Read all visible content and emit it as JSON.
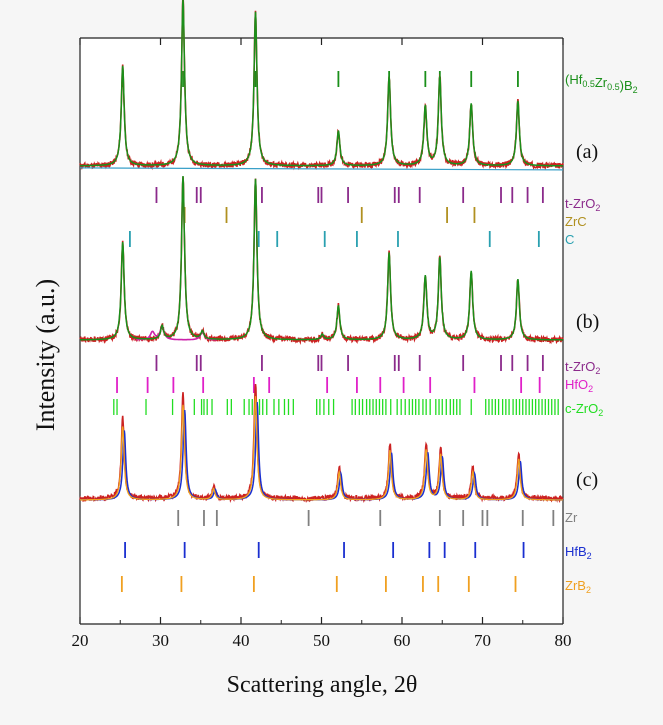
{
  "chart_data": {
    "type": "line",
    "xlabel": "Scattering angle, 2θ",
    "ylabel": "Intensity (a.u.)",
    "xlim": [
      20,
      80
    ],
    "xticks": [
      20,
      30,
      40,
      50,
      60,
      70,
      80
    ],
    "series": [
      {
        "label": "(a)",
        "baseline_rel": 0.03,
        "colors": {
          "observed": "#cc2222",
          "calculated": "#1a8f1a",
          "background": "#3aa0c8"
        },
        "peaks": [
          {
            "x": 25.3,
            "h": 0.37
          },
          {
            "x": 32.8,
            "h": 0.62
          },
          {
            "x": 41.8,
            "h": 0.57
          },
          {
            "x": 52.1,
            "h": 0.13
          },
          {
            "x": 58.4,
            "h": 0.33
          },
          {
            "x": 62.9,
            "h": 0.22
          },
          {
            "x": 64.7,
            "h": 0.33
          },
          {
            "x": 68.6,
            "h": 0.23
          },
          {
            "x": 74.4,
            "h": 0.24
          }
        ]
      },
      {
        "label": "(b)",
        "baseline_rel": 0.0,
        "colors": {
          "observed": "#cc2222",
          "calculated": "#1a8f1a",
          "impurity": "#cc22aa"
        },
        "peaks": [
          {
            "x": 25.3,
            "h": 0.37
          },
          {
            "x": 30.2,
            "h": 0.05
          },
          {
            "x": 32.8,
            "h": 0.62
          },
          {
            "x": 35.2,
            "h": 0.03
          },
          {
            "x": 41.8,
            "h": 0.61
          },
          {
            "x": 50.1,
            "h": 0.02
          },
          {
            "x": 52.1,
            "h": 0.13
          },
          {
            "x": 58.4,
            "h": 0.33
          },
          {
            "x": 62.9,
            "h": 0.24
          },
          {
            "x": 64.7,
            "h": 0.31
          },
          {
            "x": 68.6,
            "h": 0.26
          },
          {
            "x": 74.4,
            "h": 0.23
          }
        ]
      },
      {
        "label": "(c)",
        "baseline_rel": 0.0,
        "colors": {
          "observed": "#cc2222",
          "calc1": "#f0a020",
          "calc2": "#1a2fd0"
        },
        "peaks": [
          {
            "x": 25.3,
            "h": 0.34
          },
          {
            "x": 32.8,
            "h": 0.44
          },
          {
            "x": 36.6,
            "h": 0.05
          },
          {
            "x": 41.8,
            "h": 0.48
          },
          {
            "x": 52.2,
            "h": 0.13
          },
          {
            "x": 58.5,
            "h": 0.23
          },
          {
            "x": 63.0,
            "h": 0.23
          },
          {
            "x": 64.8,
            "h": 0.21
          },
          {
            "x": 68.8,
            "h": 0.13
          },
          {
            "x": 74.5,
            "h": 0.19
          }
        ]
      }
    ],
    "reflection_markers": [
      {
        "phase": "(Hf0.5Zr0.5)B2",
        "label_main": "(Hf",
        "sub1": "0.5",
        "mid": "Zr",
        "sub2": "0.5",
        "suffix": ")B",
        "sub3": "2",
        "color": "#1a8f1a",
        "positions": [
          25.3,
          32.8,
          41.8,
          52.1,
          58.4,
          62.9,
          64.7,
          68.6,
          74.4
        ]
      },
      {
        "phase": "t-ZrO2",
        "label_main": "t-ZrO",
        "sub1": "2",
        "color": "#8b2a8b",
        "positions": [
          29.5,
          34.5,
          35.0,
          42.6,
          49.6,
          50.0,
          53.3,
          59.1,
          59.6,
          62.2,
          67.6,
          72.3,
          73.7,
          75.6,
          77.5
        ]
      },
      {
        "phase": "ZrC",
        "label_main": "ZrC",
        "color": "#b09020",
        "positions": [
          33.0,
          38.2,
          55.0,
          65.6,
          69.0
        ]
      },
      {
        "phase": "C",
        "label_main": "C",
        "color": "#2aa0b0",
        "positions": [
          26.2,
          42.2,
          44.5,
          50.4,
          54.4,
          59.5,
          70.9,
          77.0
        ]
      },
      {
        "phase": "t-ZrO2",
        "label_main": "t-ZrO",
        "sub1": "2",
        "color": "#8b2a8b",
        "positions": [
          29.5,
          34.5,
          35.0,
          42.6,
          49.6,
          50.0,
          53.3,
          59.1,
          59.6,
          62.2,
          67.6,
          72.3,
          73.7,
          75.6,
          77.5
        ]
      },
      {
        "phase": "HfO2",
        "label_main": "HfO",
        "sub1": "2",
        "color": "#e020c8",
        "positions": [
          24.6,
          28.4,
          31.6,
          35.3,
          41.6,
          43.5,
          50.7,
          54.4,
          57.3,
          60.2,
          63.5,
          69.0,
          74.8,
          77.1
        ]
      },
      {
        "phase": "c-ZrO2",
        "label_main": "c-ZrO",
        "sub1": "2",
        "color": "#22dd22",
        "dense": true,
        "positions": [
          24.2,
          24.6,
          28.2,
          31.5,
          34.2,
          35.1,
          35.4,
          35.8,
          36.4,
          38.3,
          38.8,
          40.4,
          41.0,
          41.4,
          41.8,
          42.3,
          42.7,
          43.2,
          44.1,
          44.7,
          45.4,
          45.9,
          46.5,
          49.4,
          49.8,
          50.3,
          50.9,
          51.5,
          53.8,
          54.2,
          54.7,
          55.1,
          55.6,
          56.0,
          56.4,
          56.8,
          57.2,
          57.6,
          58.0,
          58.6,
          59.4,
          59.9,
          60.4,
          60.9,
          61.3,
          61.7,
          62.1,
          62.6,
          63.0,
          63.5,
          64.2,
          64.6,
          65.0,
          65.5,
          66.0,
          66.4,
          66.8,
          67.2,
          68.6,
          70.4,
          70.8,
          71.2,
          71.6,
          72.0,
          72.5,
          72.9,
          73.3,
          73.8,
          74.2,
          74.6,
          75.0,
          75.4,
          75.8,
          76.2,
          76.6,
          77.0,
          77.4,
          77.8,
          78.2,
          78.6,
          79.0,
          79.4
        ]
      },
      {
        "phase": "Zr",
        "label_main": "Zr",
        "color": "#808080",
        "positions": [
          32.2,
          35.4,
          37.0,
          48.4,
          57.3,
          64.7,
          67.6,
          70.0,
          70.6,
          75.0,
          78.8
        ]
      },
      {
        "phase": "HfB2",
        "label_main": "HfB",
        "sub1": "2",
        "color": "#1a2fd0",
        "positions": [
          25.6,
          33.0,
          42.2,
          52.8,
          58.9,
          63.4,
          65.3,
          69.1,
          75.1
        ]
      },
      {
        "phase": "ZrB2",
        "label_main": "ZrB",
        "sub1": "2",
        "color": "#f0a020",
        "positions": [
          25.2,
          32.6,
          41.6,
          51.9,
          58.0,
          62.6,
          64.5,
          68.3,
          74.1
        ]
      }
    ]
  }
}
